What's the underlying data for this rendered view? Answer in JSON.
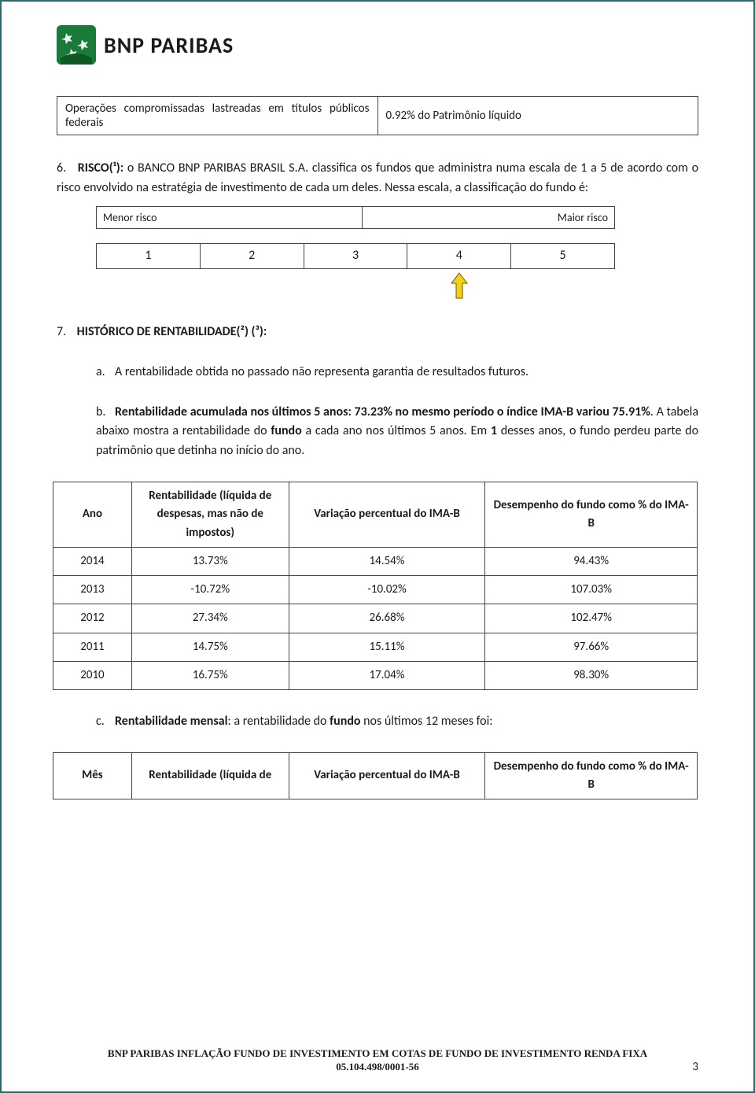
{
  "brand": {
    "name": "BNP PARIBAS",
    "logo_bg": "#1a7a3a"
  },
  "operations_table": {
    "left": "Operações compromissadas lastreadas em títulos públicos federais",
    "right": "0.92% do Patrimônio líquido"
  },
  "section6": {
    "num": "6.",
    "lead_bold": "RISCO(¹):",
    "text": " o BANCO BNP PARIBAS BRASIL S.A. classifica os fundos que administra numa escala de 1 a 5 de acordo com o risco envolvido na estratégia de investimento de cada um deles. Nessa escala, a classificação do fundo é:"
  },
  "risk_scale": {
    "low_label": "Menor risco",
    "high_label": "Maior risco",
    "levels": [
      "1",
      "2",
      "3",
      "4",
      "5"
    ],
    "selected_index": 3,
    "arrow_fill": "#f2d01a",
    "arrow_stroke": "#6b5a00"
  },
  "section7": {
    "num": "7.",
    "title": "HISTÓRICO DE RENTABILIDADE(²) (³):"
  },
  "item_a": {
    "letter": "a.",
    "text": "A rentabilidade obtida no passado não representa garantia de resultados futuros."
  },
  "item_b": {
    "letter": "b.",
    "bold1": "Rentabilidade acumulada nos últimos 5 anos: 73.23%  no mesmo período o índice IMA-B variou 75.91%",
    "text1": ". A tabela abaixo mostra a rentabilidade do ",
    "bold2": "fundo",
    "text2": " a cada ano nos últimos 5 anos. Em ",
    "bold3": "1",
    "text3": " desses anos, o fundo perdeu parte do patrimônio que detinha no início do ano."
  },
  "yearly_table": {
    "headers": {
      "ano": "Ano",
      "rent": "Rentabilidade (líquida de despesas, mas não de impostos)",
      "var": "Variação percentual do IMA-B",
      "des": "Desempenho do fundo como % do IMA-B"
    },
    "rows": [
      {
        "ano": "2014",
        "rent": "13.73%",
        "var": "14.54%",
        "des": "94.43%"
      },
      {
        "ano": "2013",
        "rent": "-10.72%",
        "var": "-10.02%",
        "des": "107.03%"
      },
      {
        "ano": "2012",
        "rent": "27.34%",
        "var": "26.68%",
        "des": "102.47%"
      },
      {
        "ano": "2011",
        "rent": "14.75%",
        "var": "15.11%",
        "des": "97.66%"
      },
      {
        "ano": "2010",
        "rent": "16.75%",
        "var": "17.04%",
        "des": "98.30%"
      }
    ]
  },
  "item_c": {
    "letter": "c.",
    "bold": "Rentabilidade mensal",
    "text1": ": a rentabilidade do ",
    "bold2": "fundo",
    "text2": " nos últimos 12 meses foi:"
  },
  "monthly_table": {
    "headers": {
      "mes": "Mês",
      "rent": "Rentabilidade (líquida de",
      "var": "Variação percentual do IMA-B",
      "des": "Desempenho do fundo como % do IMA-B"
    }
  },
  "footer": {
    "line1": "BNP PARIBAS INFLAÇÃO FUNDO DE INVESTIMENTO EM COTAS DE FUNDO DE INVESTIMENTO RENDA FIXA",
    "line2": "05.104.498/0001-56"
  },
  "page_number": "3",
  "colors": {
    "border": "#2d6b6b",
    "text": "#1a1a1a"
  }
}
